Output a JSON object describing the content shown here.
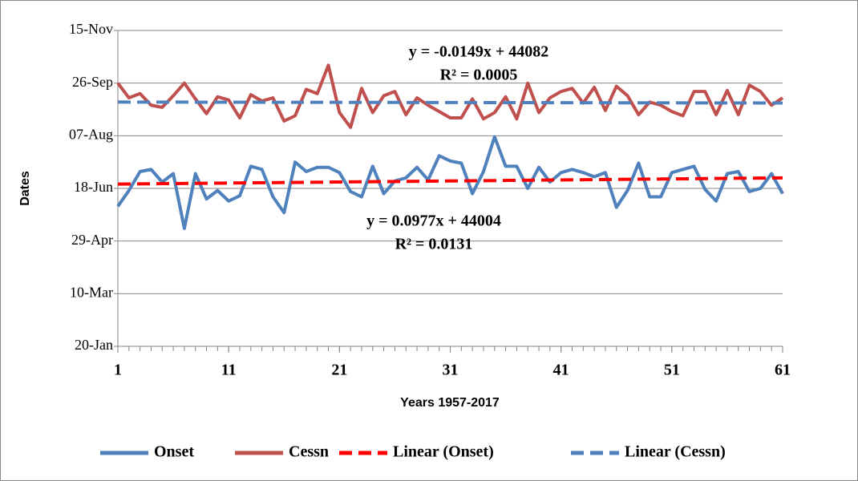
{
  "chart_data": {
    "type": "line",
    "y_label": "Dates",
    "x_label": "Years 1957-2017",
    "x": [
      1,
      2,
      3,
      4,
      5,
      6,
      7,
      8,
      9,
      10,
      11,
      12,
      13,
      14,
      15,
      16,
      17,
      18,
      19,
      20,
      21,
      22,
      23,
      24,
      25,
      26,
      27,
      28,
      29,
      30,
      31,
      32,
      33,
      34,
      35,
      36,
      37,
      38,
      39,
      40,
      41,
      42,
      43,
      44,
      45,
      46,
      47,
      48,
      49,
      50,
      51,
      52,
      53,
      54,
      55,
      56,
      57,
      58,
      59,
      60,
      61
    ],
    "xlim": [
      1,
      61
    ],
    "xticks": [
      1,
      11,
      21,
      31,
      41,
      51,
      61
    ],
    "ylim": [
      43850,
      44150
    ],
    "yticks": [
      {
        "value": 43850,
        "label": "20-Jan"
      },
      {
        "value": 43900,
        "label": "10-Mar"
      },
      {
        "value": 43950,
        "label": "29-Apr"
      },
      {
        "value": 44000,
        "label": "18-Jun"
      },
      {
        "value": 44050,
        "label": "07-Aug"
      },
      {
        "value": 44100,
        "label": "26-Sep"
      },
      {
        "value": 44150,
        "label": "15-Nov"
      }
    ],
    "grid": true,
    "legend": "bottom",
    "series": [
      {
        "name": "Onset",
        "color": "#4f81bd",
        "values": [
          43983,
          43998,
          44016,
          44018,
          44006,
          44014,
          43962,
          44014,
          43990,
          43998,
          43988,
          43993,
          44021,
          44018,
          43992,
          43977,
          44025,
          44016,
          44020,
          44020,
          44015,
          43997,
          43992,
          44021,
          43995,
          44007,
          44010,
          44020,
          44008,
          44031,
          44026,
          44024,
          43995,
          44016,
          44049,
          44021,
          44021,
          44000,
          44020,
          44006,
          44015,
          44018,
          44015,
          44011,
          44015,
          43982,
          43998,
          44024,
          43992,
          43992,
          44015,
          44018,
          44021,
          43999,
          43988,
          44014,
          44016,
          43997,
          44000,
          44014,
          43995
        ]
      },
      {
        "name": "Cessn",
        "color": "#c0504d",
        "values": [
          44100,
          44086,
          44090,
          44079,
          44077,
          44088,
          44100,
          44085,
          44071,
          44087,
          44084,
          44067,
          44089,
          44083,
          44086,
          44064,
          44069,
          44094,
          44090,
          44117,
          44072,
          44058,
          44095,
          44072,
          44088,
          44092,
          44070,
          44086,
          44079,
          44073,
          44067,
          44067,
          44085,
          44066,
          44072,
          44087,
          44066,
          44100,
          44072,
          44086,
          44092,
          44095,
          44081,
          44096,
          44074,
          44097,
          44088,
          44070,
          44082,
          44079,
          44073,
          44069,
          44092,
          44092,
          44070,
          44093,
          44070,
          44098,
          44092,
          44079,
          44086
        ]
      },
      {
        "name": "Linear (Onset)",
        "color": "#ff0000",
        "dash": true,
        "x": [
          1,
          61
        ],
        "values": [
          44004.1,
          44010.0
        ]
      },
      {
        "name": "Linear (Cessn)",
        "color": "#4f81bd",
        "dash": true,
        "x": [
          1,
          61
        ],
        "values": [
          44082.0,
          44081.1
        ]
      }
    ],
    "annotations": [
      "y = -0.0149x + 44082",
      "R² = 0.0005",
      "y = 0.0977x + 44004",
      "R² = 0.0131"
    ]
  }
}
